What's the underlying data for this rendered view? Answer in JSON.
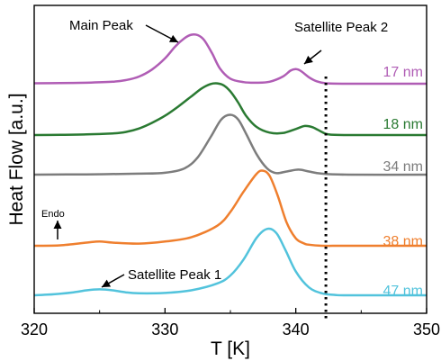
{
  "chart_data": {
    "type": "line",
    "title": "",
    "xlabel": "T [K]",
    "ylabel": "Heat Flow [a.u.]",
    "xlim": [
      320,
      350
    ],
    "xticks": [
      320,
      330,
      340,
      350
    ],
    "y_ticks_shown": false,
    "grid": false,
    "legend": "labels at right end of each curve",
    "series": [
      {
        "name": "17 nm",
        "color": "#b05db5",
        "x": [
          320,
          322,
          324,
          326,
          327,
          328,
          329,
          330,
          330.8,
          331.5,
          332,
          332.5,
          333,
          333.6,
          334.2,
          335,
          336,
          337,
          338,
          339,
          339.6,
          340,
          340.4,
          341,
          341.6,
          342.3,
          344,
          346,
          350
        ],
        "y": [
          0.02,
          0.03,
          0.05,
          0.1,
          0.18,
          0.35,
          0.7,
          1.25,
          1.85,
          2.25,
          2.42,
          2.4,
          2.15,
          1.5,
          0.75,
          0.25,
          0.08,
          0.05,
          0.1,
          0.35,
          0.65,
          0.72,
          0.62,
          0.32,
          0.12,
          0.02,
          0.0,
          0.0,
          0.0
        ]
      },
      {
        "name": "18 nm",
        "color": "#2a7a32",
        "x": [
          320,
          322,
          324,
          326,
          327,
          328,
          329,
          330,
          331,
          332,
          332.8,
          333.5,
          334,
          334.5,
          335,
          335.6,
          336.2,
          337,
          338,
          339,
          340,
          340.7,
          341.3,
          342,
          342.5,
          344,
          350
        ],
        "y": [
          0.0,
          0.01,
          0.03,
          0.08,
          0.15,
          0.32,
          0.6,
          0.95,
          1.4,
          1.9,
          2.3,
          2.52,
          2.55,
          2.45,
          2.15,
          1.6,
          0.95,
          0.4,
          0.12,
          0.1,
          0.3,
          0.45,
          0.38,
          0.15,
          0.03,
          0.0,
          0.0
        ]
      },
      {
        "name": "34 nm",
        "color": "#7d7d7d",
        "x": [
          320,
          324,
          328,
          330,
          331.5,
          332.5,
          333.5,
          334.3,
          335,
          335.6,
          336.2,
          337,
          337.8,
          338.5,
          339.3,
          340.2,
          341,
          342,
          344,
          350
        ],
        "y": [
          0.0,
          0.01,
          0.03,
          0.06,
          0.2,
          0.55,
          1.2,
          1.75,
          1.9,
          1.75,
          1.3,
          0.65,
          0.2,
          0.05,
          0.1,
          0.16,
          0.1,
          0.03,
          0.0,
          0.0
        ]
      },
      {
        "name": "38 nm",
        "color": "#ef7f2e",
        "x": [
          320,
          322,
          324,
          325,
          326,
          328,
          330,
          332,
          334,
          335,
          336,
          337,
          337.5,
          338,
          338.6,
          339.3,
          340,
          340.6,
          341,
          342,
          344,
          350
        ],
        "y": [
          0.0,
          0.02,
          0.15,
          0.2,
          0.15,
          0.1,
          0.2,
          0.4,
          0.95,
          1.6,
          2.55,
          3.4,
          3.55,
          3.3,
          2.4,
          1.1,
          0.35,
          0.12,
          0.05,
          0.0,
          0.0,
          0.0
        ]
      },
      {
        "name": "47 nm",
        "color": "#52c3dc",
        "x": [
          320,
          321,
          322,
          323,
          324,
          325,
          326,
          327,
          328,
          330,
          332,
          334,
          335,
          336,
          337,
          337.8,
          338.5,
          339.2,
          340,
          341,
          342,
          343,
          344,
          350
        ],
        "y": [
          0.0,
          0.03,
          0.08,
          0.15,
          0.25,
          0.3,
          0.25,
          0.15,
          0.1,
          0.12,
          0.25,
          0.6,
          1.0,
          1.8,
          2.9,
          3.35,
          3.15,
          2.3,
          1.2,
          0.4,
          0.1,
          0.02,
          0.0,
          0.0
        ]
      }
    ],
    "annotations": [
      {
        "text": "Main Peak",
        "arrow_to": [
          332,
          "17 nm"
        ]
      },
      {
        "text": "Satellite Peak 2",
        "arrow_to": [
          340.2,
          "17 nm"
        ]
      },
      {
        "text": "Satellite Peak 1",
        "arrow_to": [
          325,
          "47 nm"
        ]
      },
      {
        "text": "Endo",
        "arrow": "upward"
      }
    ],
    "reference_line": {
      "x": 342.3,
      "style": "dotted",
      "color": "#000000"
    }
  }
}
